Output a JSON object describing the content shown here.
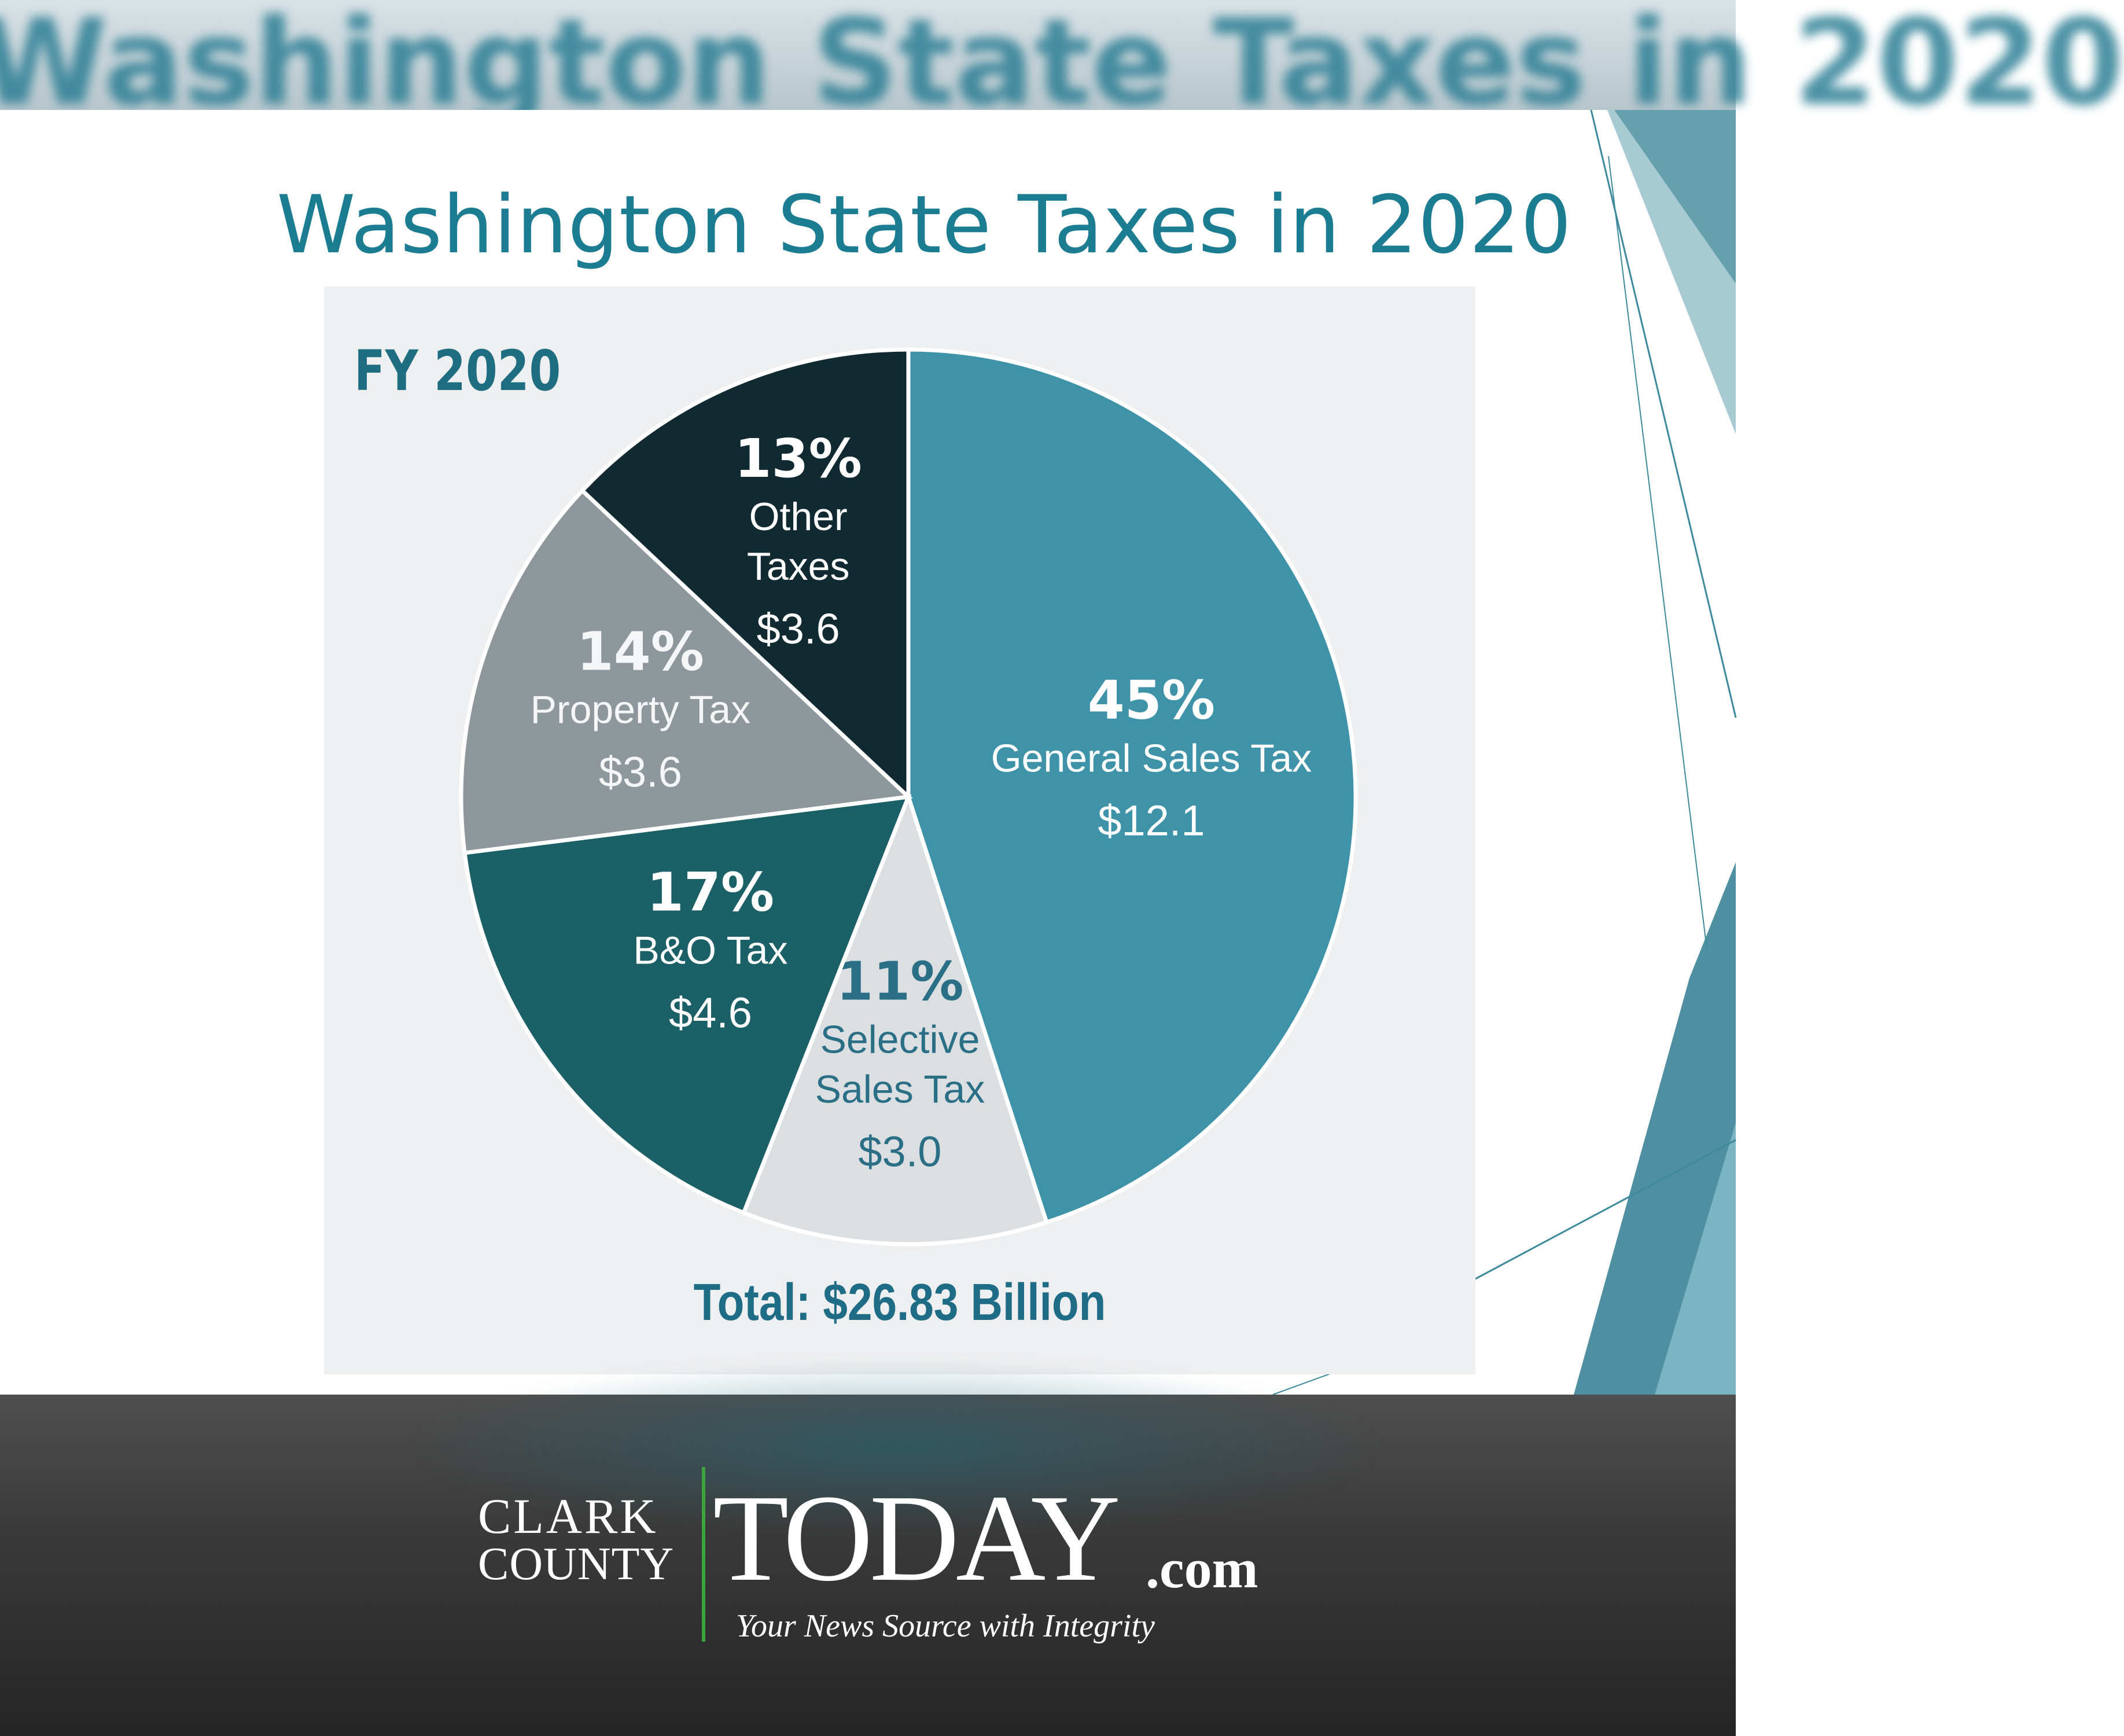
{
  "banner": {
    "title": "Washington State Taxes in 2020"
  },
  "slide": {
    "title": "Washington State Taxes in 2020"
  },
  "chart_data": {
    "type": "pie",
    "subtitle": "FY 2020",
    "total_label": "Total: $26.83 Billion",
    "slices": [
      {
        "label": "General Sales Tax",
        "percent_label": "45%",
        "amount_label": "$12.1",
        "value": 45,
        "color": "#3f93a9"
      },
      {
        "label": "Selective Sales Tax",
        "percent_label": "11%",
        "amount_label": "$3.0",
        "value": 11,
        "color": "#dcdfe1"
      },
      {
        "label": "B&O Tax",
        "percent_label": "17%",
        "amount_label": "$4.6",
        "value": 17,
        "color": "#1b5f67"
      },
      {
        "label": "Property Tax",
        "percent_label": "14%",
        "amount_label": "$3.6",
        "value": 14,
        "color": "#8e979b"
      },
      {
        "label": "Other Taxes",
        "percent_label": "13%",
        "amount_label": "$3.6",
        "value": 13,
        "color": "#112a32"
      }
    ]
  },
  "footer": {
    "brand_line1": "CLARK",
    "brand_line2": "COUNTY",
    "brand_main": "TODAY",
    "brand_suffix": ".com",
    "tagline": "Your News Source with Integrity"
  }
}
